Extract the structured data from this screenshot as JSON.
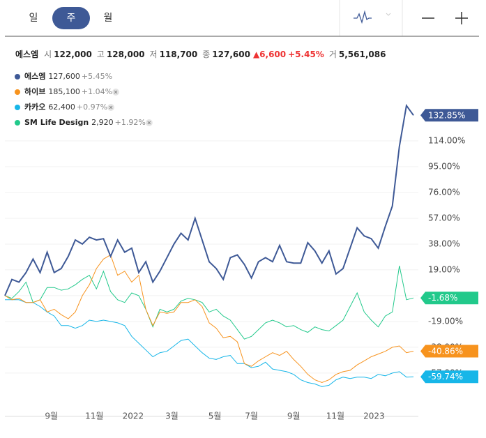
{
  "tabs": {
    "items": [
      "일",
      "주",
      "월"
    ],
    "selected": 1
  },
  "quote": {
    "name": "에스엠",
    "fields": [
      {
        "label": "시",
        "value": "122,000"
      },
      {
        "label": "고",
        "value": "128,000"
      },
      {
        "label": "저",
        "value": "118,700"
      },
      {
        "label": "종",
        "value": "127,600"
      }
    ],
    "change": "▲6,600",
    "change_pct": "+5.45%",
    "volume": {
      "label": "거",
      "value": "5,561,086"
    }
  },
  "chart_data": {
    "type": "line",
    "x": [
      0,
      1,
      2,
      3,
      4,
      5,
      6,
      7,
      8,
      9,
      10,
      11,
      12,
      13,
      14,
      15,
      16,
      17,
      18,
      19,
      20,
      21,
      22,
      23,
      24,
      25,
      26,
      27,
      28,
      29,
      30,
      31,
      32,
      33,
      34,
      35,
      36,
      37,
      38,
      39,
      40,
      41,
      42,
      43,
      44,
      45,
      46,
      47,
      48,
      49,
      50,
      51,
      52,
      53,
      54,
      55,
      56,
      57,
      58
    ],
    "xlim": [
      0,
      58
    ],
    "xticks": [
      {
        "value": 6.6,
        "label": "9월"
      },
      {
        "value": 12.7,
        "label": "11월"
      },
      {
        "value": 18.2,
        "label": "2022"
      },
      {
        "value": 23.7,
        "label": "3월"
      },
      {
        "value": 29.8,
        "label": "5월"
      },
      {
        "value": 35,
        "label": "7월"
      },
      {
        "value": 41,
        "label": "9월"
      },
      {
        "value": 46.9,
        "label": "11월"
      },
      {
        "value": 52.4,
        "label": "2023"
      }
    ],
    "ylim": [
      -88.9,
      140.7
    ],
    "yticks": [
      {
        "value": -57,
        "label": "-57.00%"
      },
      {
        "value": -38,
        "label": "-38.00%"
      },
      {
        "value": -19,
        "label": "-19.00%"
      },
      {
        "value": 0,
        "label": "0.00%"
      },
      {
        "value": 19,
        "label": "19.00%"
      },
      {
        "value": 38,
        "label": "38.00%"
      },
      {
        "value": 57,
        "label": "57.00%"
      },
      {
        "value": 76,
        "label": "76.00%"
      },
      {
        "value": 95,
        "label": "95.00%"
      },
      {
        "value": 114,
        "label": "114.00%"
      }
    ],
    "grid": true,
    "series": [
      {
        "name": "SM Life Design",
        "price": "2,920",
        "change": "+1.92%",
        "color": "#22c98b",
        "end_label": "-1.68%",
        "values": [
          0,
          -2,
          3,
          10,
          -5,
          -3,
          6,
          6,
          4,
          5,
          8,
          12,
          15,
          5,
          18,
          3,
          -3,
          -5,
          2,
          0,
          -10,
          -23,
          -10,
          -12,
          -10,
          -4,
          -2,
          -3,
          -5,
          -12,
          -10,
          -15,
          -18,
          -25,
          -32,
          -30,
          -25,
          -20,
          -18,
          -20,
          -23,
          -22,
          -25,
          -27,
          -23,
          -25,
          -26,
          -22,
          -18,
          -8,
          2,
          -12,
          -18,
          -23,
          -15,
          -12,
          22,
          -3,
          -1.68
        ]
      },
      {
        "name": "카카오",
        "price": "62,400",
        "change": "+0.97%",
        "color": "#17b6e8",
        "end_label": "-59.74%",
        "values": [
          -3,
          -3,
          -3,
          -5,
          -5,
          -8,
          -12,
          -15,
          -22,
          -22,
          -24,
          -22,
          -18,
          -19,
          -18,
          -19,
          -20,
          -22,
          -30,
          -35,
          -40,
          -45,
          -42,
          -41,
          -37,
          -33,
          -32,
          -37,
          -42,
          -46,
          -47,
          -45,
          -44,
          -50,
          -50,
          -53,
          -52,
          -49,
          -54,
          -55,
          -56,
          -58,
          -62,
          -64,
          -65,
          -67,
          -66,
          -62,
          -60,
          -61,
          -60,
          -60,
          -61,
          -58,
          -59,
          -57,
          -56,
          -60,
          -59.74
        ]
      },
      {
        "name": "하이브",
        "price": "185,100",
        "change": "+1.04%",
        "color": "#f7931e",
        "end_label": "-40.86%",
        "values": [
          0,
          -3,
          -2,
          -5,
          -5,
          -3,
          -12,
          -10,
          -14,
          -17,
          -12,
          0,
          8,
          20,
          27,
          30,
          15,
          18,
          10,
          15,
          -10,
          -22,
          -12,
          -13,
          -12,
          -5,
          -5,
          -3,
          -8,
          -20,
          -24,
          -31,
          -30,
          -34,
          -50,
          -52,
          -48,
          -45,
          -42,
          -44,
          -41,
          -47,
          -52,
          -58,
          -62,
          -64,
          -62,
          -58,
          -56,
          -55,
          -51,
          -48,
          -45,
          -43,
          -41,
          -38,
          -37,
          -42,
          -40.86
        ]
      },
      {
        "name": "에스엠",
        "price": "127,600",
        "change": "+5.45%",
        "color": "#3e5996",
        "end_label": "132.85%",
        "values": [
          0,
          12,
          10,
          17,
          27,
          17,
          32,
          17,
          20,
          29,
          41,
          38,
          43,
          41,
          42,
          29,
          41,
          32,
          35,
          17,
          25,
          10,
          18,
          28,
          38,
          46,
          41,
          57,
          41,
          25,
          20,
          12,
          28,
          30,
          23,
          13,
          25,
          28,
          25,
          37,
          25,
          24,
          24,
          39,
          33,
          24,
          33,
          16,
          20,
          35,
          50,
          44,
          42,
          35,
          51,
          66,
          110,
          140,
          132.85
        ]
      }
    ],
    "legend_order": [
      3,
      2,
      1,
      0
    ]
  }
}
